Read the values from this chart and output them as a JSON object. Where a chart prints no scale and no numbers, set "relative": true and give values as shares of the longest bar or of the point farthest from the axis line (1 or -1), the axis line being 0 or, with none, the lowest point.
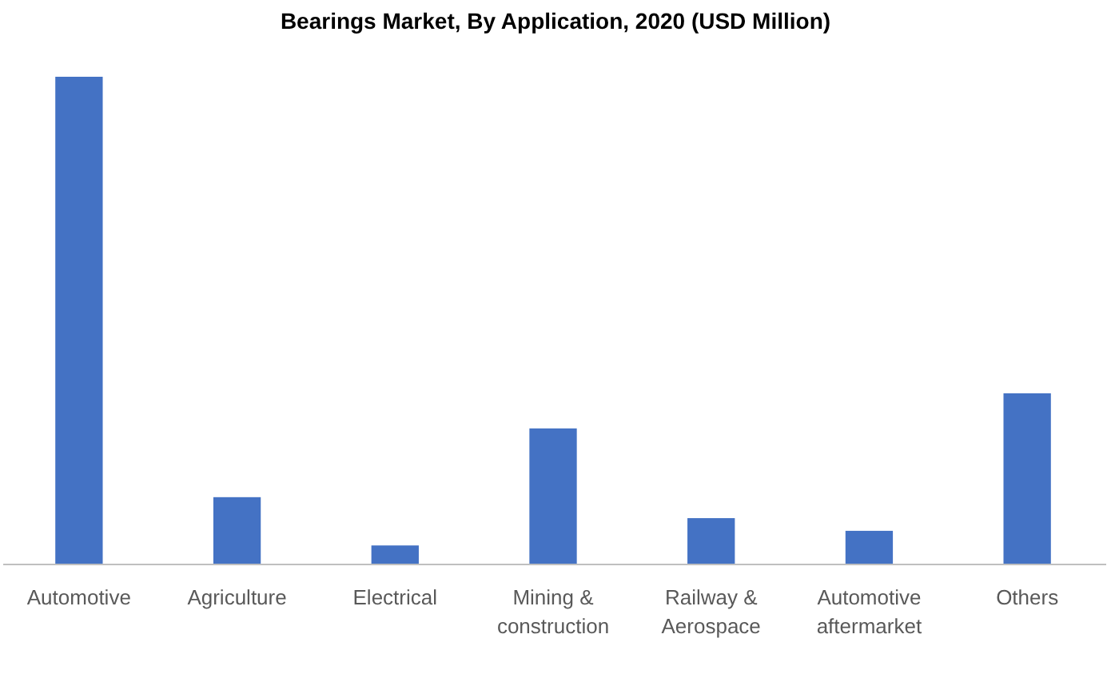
{
  "chart_data": {
    "type": "bar",
    "title": "Bearings Market, By Application, 2020 (USD Million)",
    "categories": [
      "Automotive",
      "Agriculture",
      "Electrical",
      "Mining & construction",
      "Railway & Aerospace",
      "Automotive aftermarket",
      "Others"
    ],
    "values": [
      1,
      0.138,
      0.039,
      0.279,
      0.095,
      0.069,
      0.351
    ],
    "color": "#4472c4",
    "relative": true
  }
}
